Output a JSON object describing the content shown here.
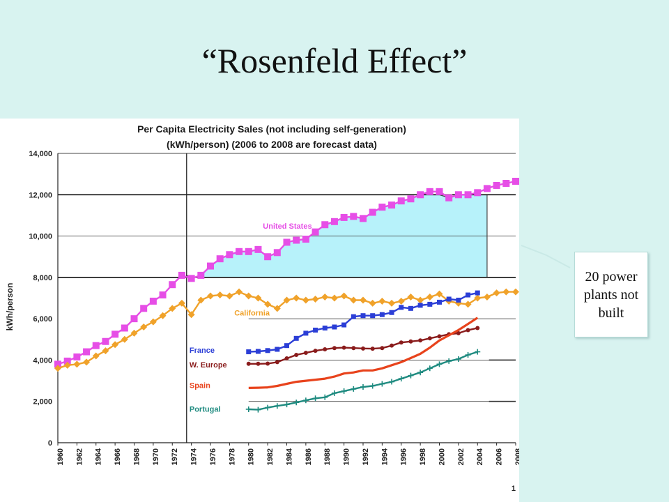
{
  "slide": {
    "title": "“Rosenfeld Effect”",
    "callout": "20 power plants not built",
    "page_number": "1"
  },
  "colors": {
    "background": "#d8f3f0",
    "united_states": "#e64ee6",
    "california": "#f0a22a",
    "france": "#2b3ed6",
    "w_europe": "#8a1c1c",
    "spain": "#e8431c",
    "portugal": "#1f8b80",
    "shaded_gap": "#b7f2fa"
  },
  "chart_data": {
    "type": "line",
    "title": "Per Capita Electricity Sales (not including self-generation)",
    "subtitle": "(kWh/person) (2006 to 2008 are forecast data)",
    "xlabel": "",
    "ylabel": "kWh/person",
    "xlim": [
      1960,
      2008
    ],
    "ylim": [
      0,
      14000
    ],
    "x_ticks": [
      "1960",
      "1962",
      "1964",
      "1966",
      "1968",
      "1970",
      "1972",
      "1974",
      "1976",
      "1978",
      "1980",
      "1982",
      "1984",
      "1986",
      "1988",
      "1990",
      "1992",
      "1994",
      "1996",
      "1998",
      "2000",
      "2002",
      "2004",
      "2006",
      "2008"
    ],
    "y_ticks": [
      "0",
      "2,000",
      "4,000",
      "6,000",
      "8,000",
      "10,000",
      "12,000",
      "14,000"
    ],
    "y_tick_values": [
      0,
      2000,
      4000,
      6000,
      8000,
      10000,
      12000,
      14000
    ],
    "vertical_marker_year": 1973.5,
    "shaded_region": {
      "x_start": 1973.5,
      "x_end": 2005,
      "y_floor": 8000,
      "y_ceiling": 12000,
      "upper_series": "United States"
    },
    "series": [
      {
        "name": "United States",
        "key": "united_states",
        "marker": "square",
        "x": [
          1960,
          1961,
          1962,
          1963,
          1964,
          1965,
          1966,
          1967,
          1968,
          1969,
          1970,
          1971,
          1972,
          1973,
          1974,
          1975,
          1976,
          1977,
          1978,
          1979,
          1980,
          1981,
          1982,
          1983,
          1984,
          1985,
          1986,
          1987,
          1988,
          1989,
          1990,
          1991,
          1992,
          1993,
          1994,
          1995,
          1996,
          1997,
          1998,
          1999,
          2000,
          2001,
          2002,
          2003,
          2004,
          2005,
          2006,
          2007,
          2008
        ],
        "values": [
          3800,
          3950,
          4150,
          4400,
          4700,
          4900,
          5250,
          5550,
          6000,
          6500,
          6850,
          7150,
          7650,
          8100,
          7950,
          8100,
          8550,
          8900,
          9100,
          9250,
          9250,
          9350,
          9000,
          9200,
          9700,
          9800,
          9850,
          10200,
          10550,
          10700,
          10900,
          10950,
          10850,
          11150,
          11400,
          11500,
          11700,
          11800,
          12000,
          12150,
          12150,
          11850,
          12000,
          12000,
          12100,
          12300,
          12450,
          12550,
          12650
        ],
        "label_position": [
          1981.5,
          10350
        ]
      },
      {
        "name": "California",
        "key": "california",
        "marker": "diamond",
        "x": [
          1960,
          1961,
          1962,
          1963,
          1964,
          1965,
          1966,
          1967,
          1968,
          1969,
          1970,
          1971,
          1972,
          1973,
          1974,
          1975,
          1976,
          1977,
          1978,
          1979,
          1980,
          1981,
          1982,
          1983,
          1984,
          1985,
          1986,
          1987,
          1988,
          1989,
          1990,
          1991,
          1992,
          1993,
          1994,
          1995,
          1996,
          1997,
          1998,
          1999,
          2000,
          2001,
          2002,
          2003,
          2004,
          2005,
          2006,
          2007,
          2008
        ],
        "values": [
          3600,
          3750,
          3800,
          3900,
          4200,
          4450,
          4750,
          5000,
          5300,
          5600,
          5850,
          6150,
          6500,
          6750,
          6200,
          6900,
          7100,
          7150,
          7100,
          7300,
          7100,
          7000,
          6700,
          6500,
          6900,
          7000,
          6900,
          6950,
          7050,
          7000,
          7100,
          6900,
          6900,
          6750,
          6850,
          6750,
          6850,
          7050,
          6900,
          7050,
          7200,
          6850,
          6750,
          6700,
          7000,
          7050,
          7250,
          7300,
          7300
        ],
        "label_position": [
          1978.5,
          6150
        ]
      },
      {
        "name": "France",
        "key": "france",
        "marker": "square",
        "x": [
          1980,
          1981,
          1982,
          1983,
          1984,
          1985,
          1986,
          1987,
          1988,
          1989,
          1990,
          1991,
          1992,
          1993,
          1994,
          1995,
          1996,
          1997,
          1998,
          1999,
          2000,
          2001,
          2002,
          2003,
          2004
        ],
        "values": [
          4400,
          4420,
          4460,
          4520,
          4700,
          5050,
          5300,
          5450,
          5550,
          5600,
          5700,
          6100,
          6150,
          6150,
          6200,
          6300,
          6550,
          6500,
          6650,
          6700,
          6800,
          6950,
          6900,
          7150,
          7250
        ],
        "label_position": [
          1973.8,
          4350
        ]
      },
      {
        "name": "W. Europe",
        "key": "w_europe",
        "marker": "circle",
        "x": [
          1980,
          1981,
          1982,
          1983,
          1984,
          1985,
          1986,
          1987,
          1988,
          1989,
          1990,
          1991,
          1992,
          1993,
          1994,
          1995,
          1996,
          1997,
          1998,
          1999,
          2000,
          2001,
          2002,
          2003,
          2004
        ],
        "values": [
          3820,
          3820,
          3830,
          3900,
          4080,
          4250,
          4350,
          4450,
          4520,
          4580,
          4600,
          4580,
          4560,
          4550,
          4580,
          4700,
          4850,
          4900,
          4950,
          5050,
          5150,
          5250,
          5300,
          5450,
          5550
        ],
        "label_position": [
          1973.8,
          3650
        ]
      },
      {
        "name": "Spain",
        "key": "spain",
        "marker": "none",
        "x": [
          1980,
          1981,
          1982,
          1983,
          1984,
          1985,
          1986,
          1987,
          1988,
          1989,
          1990,
          1991,
          1992,
          1993,
          1994,
          1995,
          1996,
          1997,
          1998,
          1999,
          2000,
          2001,
          2002,
          2003,
          2004
        ],
        "values": [
          2650,
          2660,
          2680,
          2750,
          2850,
          2950,
          3000,
          3050,
          3100,
          3200,
          3350,
          3400,
          3500,
          3500,
          3600,
          3750,
          3900,
          4100,
          4300,
          4600,
          4950,
          5200,
          5450,
          5750,
          6050
        ],
        "label_position": [
          1973.8,
          2650
        ]
      },
      {
        "name": "Portugal",
        "key": "portugal",
        "marker": "plus",
        "x": [
          1980,
          1981,
          1982,
          1983,
          1984,
          1985,
          1986,
          1987,
          1988,
          1989,
          1990,
          1991,
          1992,
          1993,
          1994,
          1995,
          1996,
          1997,
          1998,
          1999,
          2000,
          2001,
          2002,
          2003,
          2004
        ],
        "values": [
          1620,
          1600,
          1700,
          1780,
          1850,
          1950,
          2050,
          2150,
          2200,
          2400,
          2500,
          2600,
          2700,
          2750,
          2850,
          2950,
          3100,
          3250,
          3400,
          3600,
          3800,
          3950,
          4050,
          4250,
          4400
        ],
        "label_position": [
          1973.8,
          1500
        ]
      }
    ]
  }
}
